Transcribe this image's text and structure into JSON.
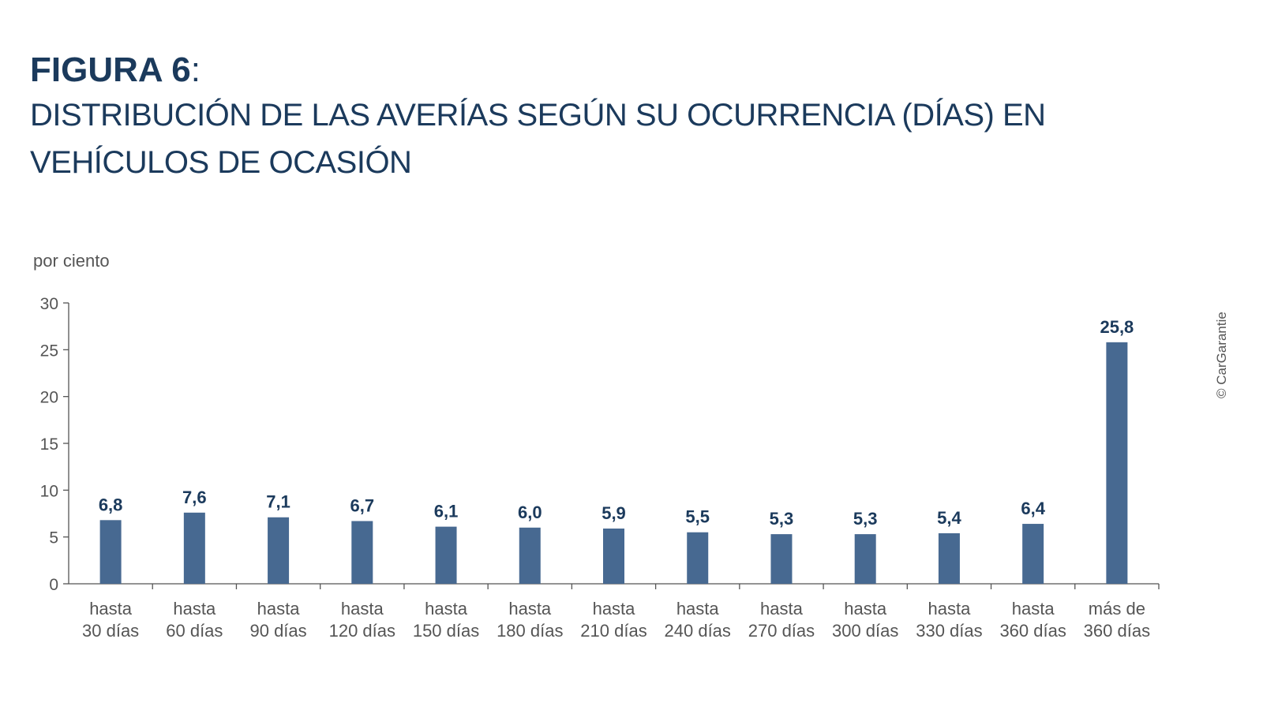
{
  "figure_label": "FIGURA 6",
  "figure_colon": ":",
  "subtitle": "DISTRIBUCIÓN DE LAS AVERÍAS SEGÚN SU OCURRENCIA (DÍAS) EN VEHÍCULOS DE OCASIÓN",
  "ylabel": "por ciento",
  "copyright": "© CarGarantie",
  "colors": {
    "bar": "#476991",
    "text": "#1b3a5c",
    "axis": "#555555"
  },
  "chart_data": {
    "type": "bar",
    "title": "DISTRIBUCIÓN DE LAS AVERÍAS SEGÚN SU OCURRENCIA (DÍAS) EN VEHÍCULOS DE OCASIÓN",
    "ylabel": "por ciento",
    "xlabel": "",
    "ylim": [
      0,
      30
    ],
    "yticks": [
      "0",
      "5",
      "10",
      "15",
      "20",
      "25",
      "30"
    ],
    "categories": [
      [
        "hasta",
        "30 días"
      ],
      [
        "hasta",
        "60 días"
      ],
      [
        "hasta",
        "90 días"
      ],
      [
        "hasta",
        "120 días"
      ],
      [
        "hasta",
        "150 días"
      ],
      [
        "hasta",
        "180 días"
      ],
      [
        "hasta",
        "210 días"
      ],
      [
        "hasta",
        "240 días"
      ],
      [
        "hasta",
        "270 días"
      ],
      [
        "hasta",
        "300 días"
      ],
      [
        "hasta",
        "330 días"
      ],
      [
        "hasta",
        "360 días"
      ],
      [
        "más de",
        "360 días"
      ]
    ],
    "values": [
      6.8,
      7.6,
      7.1,
      6.7,
      6.1,
      6.0,
      5.9,
      5.5,
      5.3,
      5.3,
      5.4,
      6.4,
      25.8
    ],
    "value_labels": [
      "6,8",
      "7,6",
      "7,1",
      "6,7",
      "6,1",
      "6,0",
      "5,9",
      "5,5",
      "5,3",
      "5,3",
      "5,4",
      "6,4",
      "25,8"
    ],
    "grid": false,
    "legend": "none"
  }
}
